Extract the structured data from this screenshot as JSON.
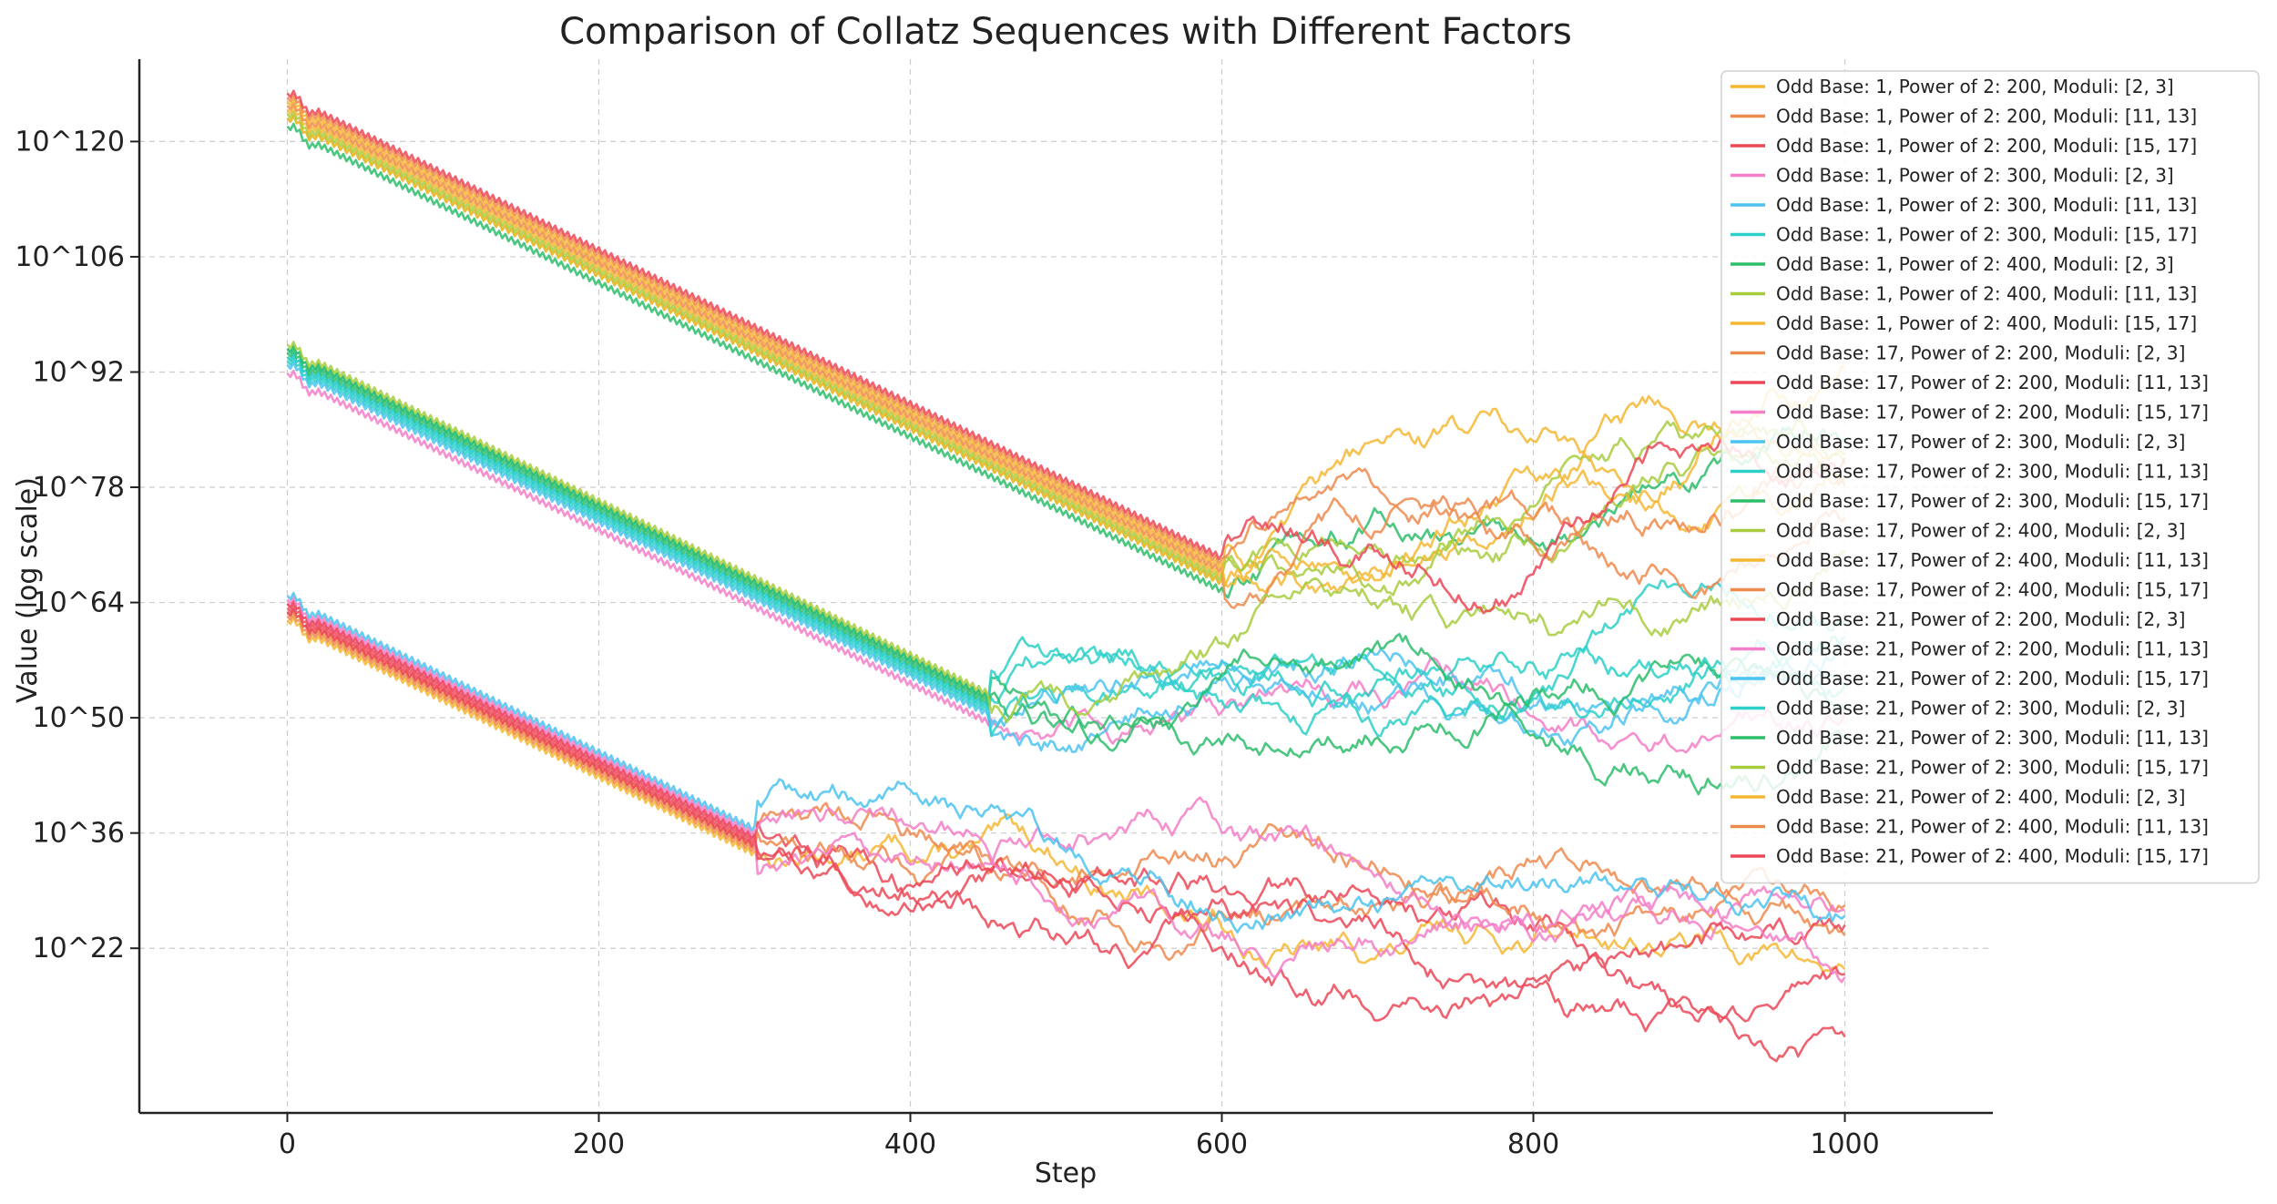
{
  "chart_data": {
    "type": "line",
    "title": "Comparison of Collatz Sequences with Different Factors",
    "xlabel": "Step",
    "ylabel": "Value (log scale)",
    "xscale": "linear",
    "yscale": "log",
    "xlim": [
      -95,
      1095
    ],
    "ylim_exp": [
      2,
      130
    ],
    "xticks": [
      0,
      200,
      400,
      600,
      800,
      1000
    ],
    "xtick_labels": [
      "0",
      "200",
      "400",
      "600",
      "800",
      "1000"
    ],
    "yticks_exp": [
      22,
      36,
      50,
      64,
      78,
      92,
      106,
      120
    ],
    "ytick_labels": [
      "10^22",
      "10^36",
      "10^50",
      "10^64",
      "10^78",
      "10^92",
      "10^106",
      "10^120"
    ],
    "grid": true,
    "legend_position": "top-right",
    "series": [
      {
        "name": "Odd Base: 1, Power of 2: 200, Moduli: [2, 3]",
        "color": "#f5b732",
        "group": 2,
        "start_exp": 61.5,
        "knee": 300,
        "end_exp": 18
      },
      {
        "name": "Odd Base: 1, Power of 2: 200, Moduli: [11, 13]",
        "color": "#ee8a4e",
        "group": 2,
        "start_exp": 62.5,
        "knee": 300,
        "end_exp": 28
      },
      {
        "name": "Odd Base: 1, Power of 2: 200, Moduli: [15, 17]",
        "color": "#ec4858",
        "group": 2,
        "start_exp": 62.5,
        "knee": 300,
        "end_exp": 15
      },
      {
        "name": "Odd Base: 1, Power of 2: 300, Moduli: [2, 3]",
        "color": "#f47ec8",
        "group": 1,
        "start_exp": 91.5,
        "knee": 450,
        "end_exp": 52
      },
      {
        "name": "Odd Base: 1, Power of 2: 300, Moduli: [11, 13]",
        "color": "#4cc3f0",
        "group": 1,
        "start_exp": 92.5,
        "knee": 450,
        "end_exp": 60
      },
      {
        "name": "Odd Base: 1, Power of 2: 300, Moduli: [15, 17]",
        "color": "#2cd0c8",
        "group": 1,
        "start_exp": 93,
        "knee": 450,
        "end_exp": 56
      },
      {
        "name": "Odd Base: 1, Power of 2: 400, Moduli: [2, 3]",
        "color": "#2dbd6b",
        "group": 0,
        "start_exp": 121.5,
        "knee": 600,
        "end_exp": 82
      },
      {
        "name": "Odd Base: 1, Power of 2: 400, Moduli: [11, 13]",
        "color": "#a7cc3e",
        "group": 0,
        "start_exp": 122.5,
        "knee": 600,
        "end_exp": 84
      },
      {
        "name": "Odd Base: 1, Power of 2: 400, Moduli: [15, 17]",
        "color": "#f5b732",
        "group": 0,
        "start_exp": 122.5,
        "knee": 600,
        "end_exp": 88
      },
      {
        "name": "Odd Base: 17, Power of 2: 200, Moduli: [2, 3]",
        "color": "#ee8a4e",
        "group": 2,
        "start_exp": 62,
        "knee": 300,
        "end_exp": 30
      },
      {
        "name": "Odd Base: 17, Power of 2: 200, Moduli: [11, 13]",
        "color": "#ec4858",
        "group": 2,
        "start_exp": 63,
        "knee": 300,
        "end_exp": 13
      },
      {
        "name": "Odd Base: 17, Power of 2: 200, Moduli: [15, 17]",
        "color": "#f47ec8",
        "group": 2,
        "start_exp": 63.5,
        "knee": 300,
        "end_exp": 28
      },
      {
        "name": "Odd Base: 17, Power of 2: 300, Moduli: [2, 3]",
        "color": "#4cc3f0",
        "group": 1,
        "start_exp": 93.5,
        "knee": 450,
        "end_exp": 58
      },
      {
        "name": "Odd Base: 17, Power of 2: 300, Moduli: [11, 13]",
        "color": "#2cd0c8",
        "group": 1,
        "start_exp": 93.5,
        "knee": 450,
        "end_exp": 62
      },
      {
        "name": "Odd Base: 17, Power of 2: 300, Moduli: [15, 17]",
        "color": "#2dbd6b",
        "group": 1,
        "start_exp": 94,
        "knee": 450,
        "end_exp": 55
      },
      {
        "name": "Odd Base: 17, Power of 2: 400, Moduli: [2, 3]",
        "color": "#a7cc3e",
        "group": 0,
        "start_exp": 123,
        "knee": 600,
        "end_exp": 86
      },
      {
        "name": "Odd Base: 17, Power of 2: 400, Moduli: [11, 13]",
        "color": "#f5b732",
        "group": 0,
        "start_exp": 123.5,
        "knee": 600,
        "end_exp": 80
      },
      {
        "name": "Odd Base: 17, Power of 2: 400, Moduli: [15, 17]",
        "color": "#ee8a4e",
        "group": 0,
        "start_exp": 124,
        "knee": 600,
        "end_exp": 76
      },
      {
        "name": "Odd Base: 21, Power of 2: 200, Moduli: [2, 3]",
        "color": "#ec4858",
        "group": 2,
        "start_exp": 63.5,
        "knee": 300,
        "end_exp": 17
      },
      {
        "name": "Odd Base: 21, Power of 2: 200, Moduli: [11, 13]",
        "color": "#f47ec8",
        "group": 2,
        "start_exp": 64,
        "knee": 300,
        "end_exp": 21
      },
      {
        "name": "Odd Base: 21, Power of 2: 200, Moduli: [15, 17]",
        "color": "#4cc3f0",
        "group": 2,
        "start_exp": 64.5,
        "knee": 300,
        "end_exp": 27
      },
      {
        "name": "Odd Base: 21, Power of 2: 300, Moduli: [2, 3]",
        "color": "#2cd0c8",
        "group": 1,
        "start_exp": 94.5,
        "knee": 450,
        "end_exp": 61
      },
      {
        "name": "Odd Base: 21, Power of 2: 300, Moduli: [11, 13]",
        "color": "#2dbd6b",
        "group": 1,
        "start_exp": 94.5,
        "knee": 450,
        "end_exp": 53
      },
      {
        "name": "Odd Base: 21, Power of 2: 300, Moduli: [15, 17]",
        "color": "#a7cc3e",
        "group": 1,
        "start_exp": 95,
        "knee": 450,
        "end_exp": 64
      },
      {
        "name": "Odd Base: 21, Power of 2: 400, Moduli: [2, 3]",
        "color": "#f5b732",
        "group": 0,
        "start_exp": 124.5,
        "knee": 600,
        "end_exp": 90
      },
      {
        "name": "Odd Base: 21, Power of 2: 400, Moduli: [11, 13]",
        "color": "#ee8a4e",
        "group": 0,
        "start_exp": 125,
        "knee": 600,
        "end_exp": 74
      },
      {
        "name": "Odd Base: 21, Power of 2: 400, Moduli: [15, 17]",
        "color": "#ec4858",
        "group": 0,
        "start_exp": 125.5,
        "knee": 600,
        "end_exp": 83
      }
    ]
  }
}
